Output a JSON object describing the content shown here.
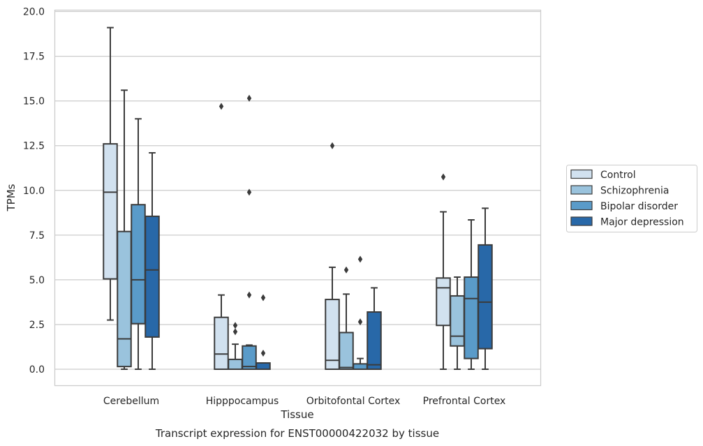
{
  "chart_data": {
    "type": "boxplot",
    "xlabel": "Tissue",
    "ylabel": "TPMs",
    "caption": "Transcript expression for ENST00000422032 by tissue",
    "ylim": [
      -0.9,
      20.05
    ],
    "yticks": [
      0.0,
      2.5,
      5.0,
      7.5,
      10.0,
      12.5,
      15.0,
      17.5,
      20.0
    ],
    "ytick_labels": [
      "0.0",
      "2.5",
      "5.0",
      "7.5",
      "10.0",
      "12.5",
      "15.0",
      "17.5",
      "20.0"
    ],
    "grid": "horizontal",
    "legend_position": "right",
    "categories": [
      "Cerebellum",
      "Hipppocampus",
      "Orbitofontal Cortex",
      "Prefrontal Cortex"
    ],
    "series": [
      {
        "name": "Control",
        "color": "#d1e1ef",
        "boxes": [
          {
            "whislo": 2.75,
            "q1": 5.05,
            "med": 9.9,
            "q3": 12.6,
            "whishi": 19.1,
            "fliers": []
          },
          {
            "whislo": 0.0,
            "q1": 0.0,
            "med": 0.85,
            "q3": 2.9,
            "whishi": 4.15,
            "fliers": [
              14.7
            ]
          },
          {
            "whislo": 0.0,
            "q1": 0.0,
            "med": 0.5,
            "q3": 3.9,
            "whishi": 5.7,
            "fliers": [
              12.5
            ]
          },
          {
            "whislo": 0.0,
            "q1": 2.45,
            "med": 4.55,
            "q3": 5.1,
            "whishi": 8.8,
            "fliers": [
              10.75
            ]
          }
        ]
      },
      {
        "name": "Schizophrenia",
        "color": "#9ac3dd",
        "boxes": [
          {
            "whislo": 0.0,
            "q1": 0.15,
            "med": 1.7,
            "q3": 7.7,
            "whishi": 15.6,
            "fliers": []
          },
          {
            "whislo": 0.0,
            "q1": 0.0,
            "med": 0.0,
            "q3": 0.55,
            "whishi": 1.4,
            "fliers": [
              2.1,
              2.45
            ]
          },
          {
            "whislo": 0.0,
            "q1": 0.0,
            "med": 0.1,
            "q3": 2.05,
            "whishi": 4.2,
            "fliers": [
              5.55
            ]
          },
          {
            "whislo": 0.0,
            "q1": 1.3,
            "med": 1.85,
            "q3": 4.1,
            "whishi": 5.15,
            "fliers": []
          }
        ]
      },
      {
        "name": "Bipolar disorder",
        "color": "#5a9bc9",
        "boxes": [
          {
            "whislo": 0.0,
            "q1": 2.55,
            "med": 5.0,
            "q3": 9.2,
            "whishi": 14.0,
            "fliers": []
          },
          {
            "whislo": 0.0,
            "q1": 0.0,
            "med": 0.15,
            "q3": 1.3,
            "whishi": 1.35,
            "fliers": [
              4.15,
              9.9,
              15.15
            ]
          },
          {
            "whislo": 0.0,
            "q1": 0.0,
            "med": 0.0,
            "q3": 0.3,
            "whishi": 0.6,
            "fliers": [
              2.65,
              6.15
            ]
          },
          {
            "whislo": 0.0,
            "q1": 0.6,
            "med": 3.95,
            "q3": 5.15,
            "whishi": 8.35,
            "fliers": []
          }
        ]
      },
      {
        "name": "Major depression",
        "color": "#2868a8",
        "boxes": [
          {
            "whislo": 0.0,
            "q1": 1.8,
            "med": 5.55,
            "q3": 8.55,
            "whishi": 12.1,
            "fliers": []
          },
          {
            "whislo": 0.0,
            "q1": 0.0,
            "med": 0.0,
            "q3": 0.35,
            "whishi": 0.35,
            "fliers": [
              0.9,
              4.0
            ]
          },
          {
            "whislo": 0.0,
            "q1": 0.0,
            "med": 0.25,
            "q3": 3.2,
            "whishi": 4.55,
            "fliers": []
          },
          {
            "whislo": 0.0,
            "q1": 1.15,
            "med": 3.75,
            "q3": 6.95,
            "whishi": 9.0,
            "fliers": []
          }
        ]
      }
    ]
  }
}
